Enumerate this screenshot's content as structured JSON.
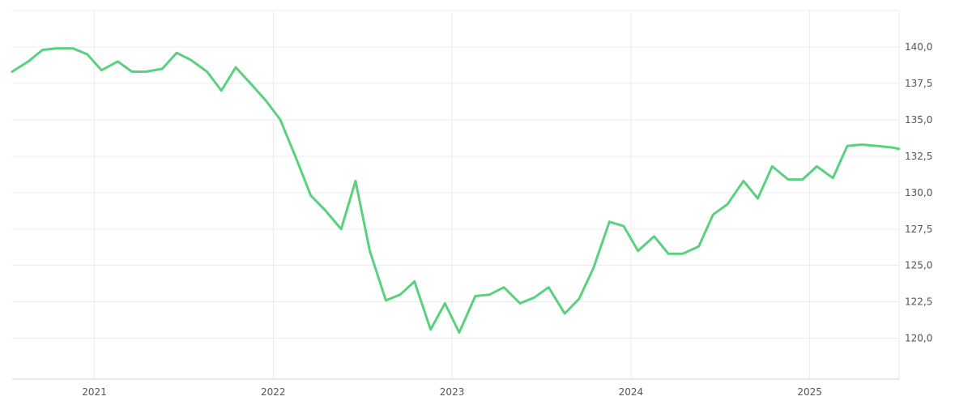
{
  "chart_data": {
    "type": "line",
    "title": "",
    "xlabel": "",
    "ylabel": "",
    "grid": true,
    "legend": "none",
    "color": "#5ad17e",
    "x_range": [
      2020.54,
      2025.5
    ],
    "ylim": [
      117.2,
      142.5
    ],
    "y_ticks": [
      120.0,
      122.5,
      125.0,
      127.5,
      130.0,
      132.5,
      135.0,
      137.5,
      140.0
    ],
    "y_tick_labels": [
      "120,0",
      "122,5",
      "125,0",
      "127,5",
      "130,0",
      "132,5",
      "135,0",
      "137,5",
      "140,0"
    ],
    "x_ticks": [
      2021,
      2022,
      2023,
      2024,
      2025
    ],
    "x_tick_labels": [
      "2021",
      "2022",
      "2023",
      "2024",
      "2025"
    ],
    "series": [
      {
        "x": [
          2020.54,
          2020.63,
          2020.71,
          2020.79,
          2020.88,
          2020.96,
          2021.04,
          2021.13,
          2021.21,
          2021.29,
          2021.38,
          2021.46,
          2021.54,
          2021.63,
          2021.71,
          2021.79,
          2021.88,
          2021.96,
          2022.04,
          2022.13,
          2022.21,
          2022.29,
          2022.38,
          2022.46,
          2022.54,
          2022.63,
          2022.71,
          2022.79,
          2022.88,
          2022.96,
          2023.04,
          2023.13,
          2023.21,
          2023.29,
          2023.38,
          2023.46,
          2023.54,
          2023.63,
          2023.71,
          2023.79,
          2023.88,
          2023.96,
          2024.04,
          2024.13,
          2024.21,
          2024.29,
          2024.38,
          2024.46,
          2024.54,
          2024.63,
          2024.71,
          2024.79,
          2024.88,
          2024.96,
          2025.04,
          2025.13,
          2025.21,
          2025.29,
          2025.38,
          2025.46,
          2025.5
        ],
        "values": [
          138.3,
          139.0,
          139.8,
          139.9,
          139.9,
          139.5,
          138.4,
          139.0,
          138.3,
          138.3,
          138.5,
          139.6,
          139.1,
          138.3,
          137.0,
          138.6,
          137.4,
          136.3,
          135.0,
          132.3,
          129.8,
          128.8,
          127.5,
          130.8,
          126.0,
          122.6,
          123.0,
          123.9,
          120.6,
          122.4,
          120.4,
          122.9,
          123.0,
          123.5,
          122.4,
          122.8,
          123.5,
          121.7,
          122.7,
          124.8,
          128.0,
          127.7,
          126.0,
          127.0,
          125.8,
          125.8,
          126.3,
          128.5,
          129.2,
          130.8,
          129.6,
          131.8,
          130.9,
          130.9,
          131.8,
          131.0,
          133.2,
          133.3,
          133.2,
          133.1,
          133.0
        ]
      }
    ]
  }
}
